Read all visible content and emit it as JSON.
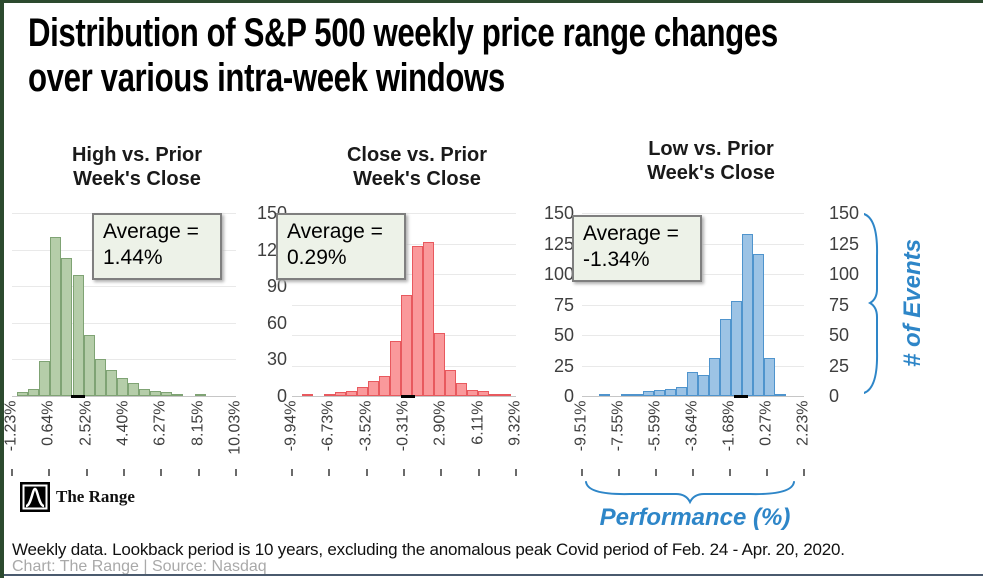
{
  "title": {
    "line1": "Distribution of S&P 500 weekly price range changes",
    "line2": "over various intra-week windows"
  },
  "right_axis": {
    "label": "# of Events"
  },
  "xaxis_annotation": {
    "label": "Performance (%)"
  },
  "footnote": "Weekly data. Lookback period is 10 years, excluding the anomalous peak Covid period of Feb. 24 - Apr. 20, 2020.",
  "credit": "Chart: The Range | Source: Nasdaq",
  "branding": {
    "logo_text": "The Range"
  },
  "annotation_color": "#2e86c8",
  "chart_data": [
    {
      "type": "histogram",
      "title_line1": "High vs. Prior",
      "title_line2": "Week's Close",
      "average_label": "Average =",
      "average_value": "1.44%",
      "average_marker_frac": 0.295,
      "counts": [
        3,
        6,
        29,
        130,
        113,
        99,
        50,
        30,
        21,
        15,
        11,
        6,
        4,
        3,
        2,
        0,
        2
      ],
      "x_tick_labels": [
        "-1.23%",
        "0.64%",
        "2.52%",
        "4.40%",
        "6.27%",
        "8.15%",
        "10.03%"
      ],
      "y_tick_labels": [
        "150",
        "120",
        "90",
        "60",
        "30",
        "0"
      ],
      "y_grid": [
        30,
        60,
        90,
        120,
        150
      ],
      "ylim": [
        0,
        150
      ],
      "colors": {
        "fill": "#b5cda9",
        "stroke": "#7fa374"
      }
    },
    {
      "type": "histogram",
      "title_line1": "Close vs. Prior",
      "title_line2": "Week's Close",
      "average_label": "Average =",
      "average_value": "0.29%",
      "average_marker_frac": 0.518,
      "counts": [
        2,
        0,
        2,
        3,
        4,
        7,
        12,
        16,
        45,
        83,
        123,
        126,
        52,
        21,
        11,
        5,
        4,
        2,
        2
      ],
      "x_tick_labels": [
        "-9.94%",
        "-6.73%",
        "-3.52%",
        "-0.31%",
        "2.90%",
        "6.11%",
        "9.32%"
      ],
      "y_tick_labels": [
        "150",
        "125",
        "100",
        "75",
        "50",
        "25",
        "0"
      ],
      "y_grid": [
        25,
        50,
        75,
        100,
        125,
        150
      ],
      "ylim": [
        0,
        150
      ],
      "colors": {
        "fill": "#fa999b",
        "stroke": "#e8595e"
      }
    },
    {
      "type": "histogram",
      "title_line1": "Low vs. Prior",
      "title_line2": "Week's Close",
      "average_label": "Average =",
      "average_value": "-1.34%",
      "average_marker_frac": 0.716,
      "counts": [
        1,
        0,
        1,
        2,
        4,
        5,
        6,
        7,
        20,
        17,
        31,
        63,
        78,
        133,
        116,
        31,
        1
      ],
      "x_tick_labels": [
        "-9.51%",
        "-7.55%",
        "-5.59%",
        "-3.64%",
        "-1.68%",
        "0.27%",
        "2.23%"
      ],
      "y_tick_labels": [
        "150",
        "125",
        "100",
        "75",
        "50",
        "25",
        "0"
      ],
      "y_grid": [
        25,
        50,
        75,
        100,
        125,
        150
      ],
      "ylim": [
        0,
        150
      ],
      "colors": {
        "fill": "#9cc3e5",
        "stroke": "#4f94cd"
      }
    }
  ]
}
